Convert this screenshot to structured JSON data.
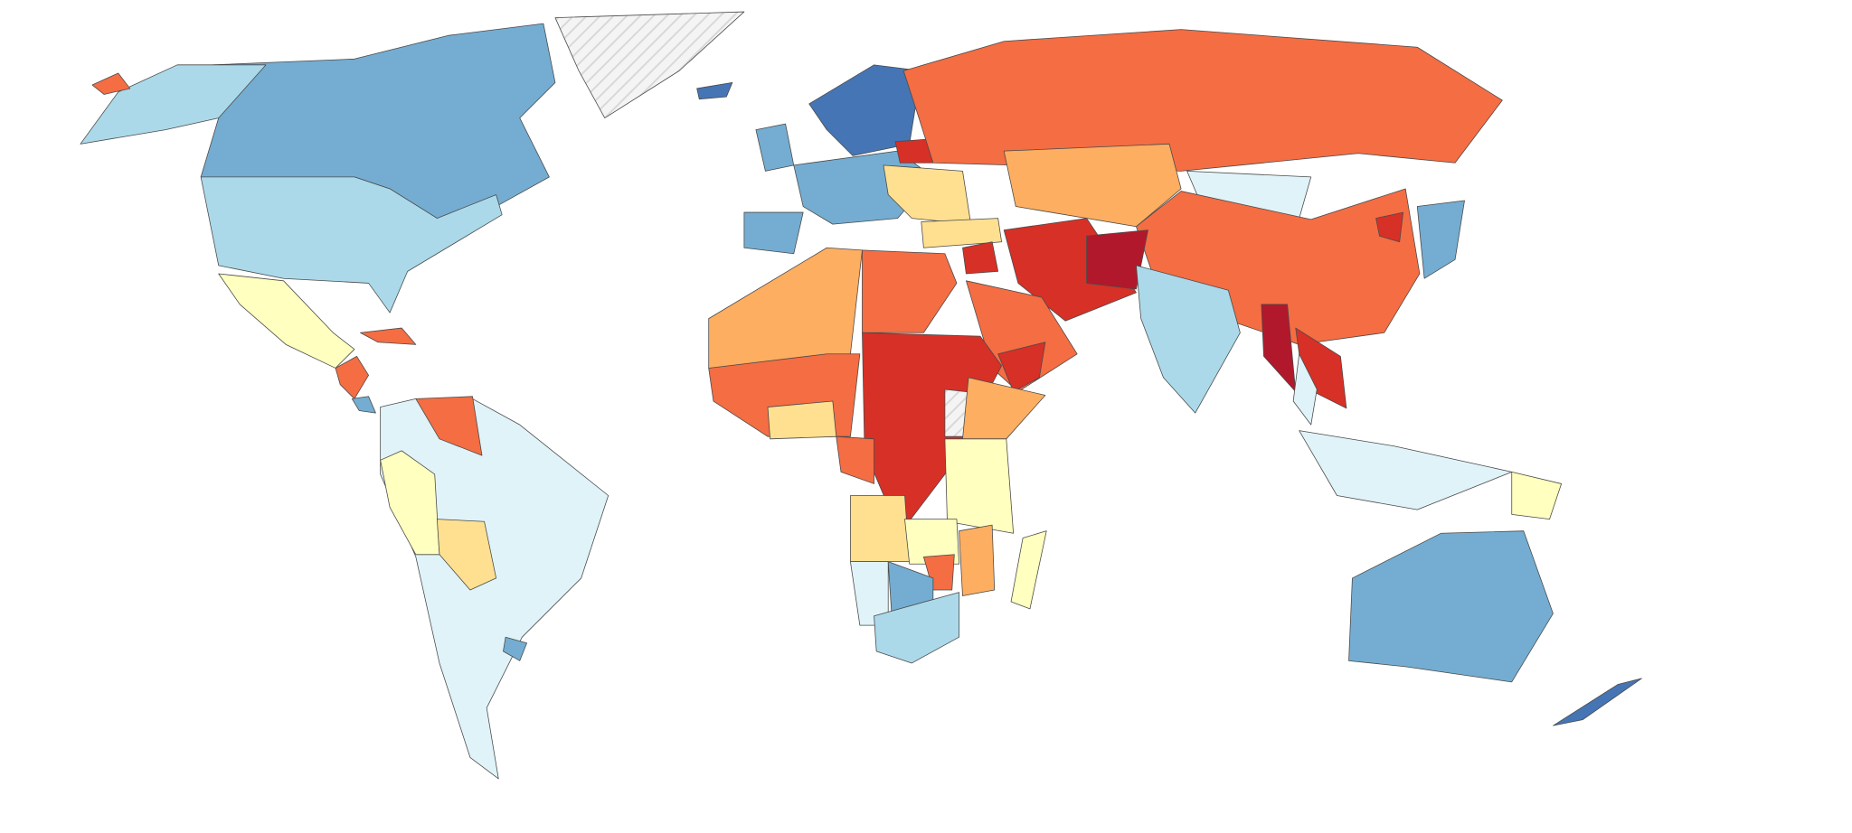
{
  "map": {
    "palette": [
      "#4575b4",
      "#74add1",
      "#abd9e9",
      "#e0f3f8",
      "#ffffbf",
      "#fee090",
      "#fdae61",
      "#f46d43",
      "#d73027",
      "#b2182b"
    ]
  }
}
